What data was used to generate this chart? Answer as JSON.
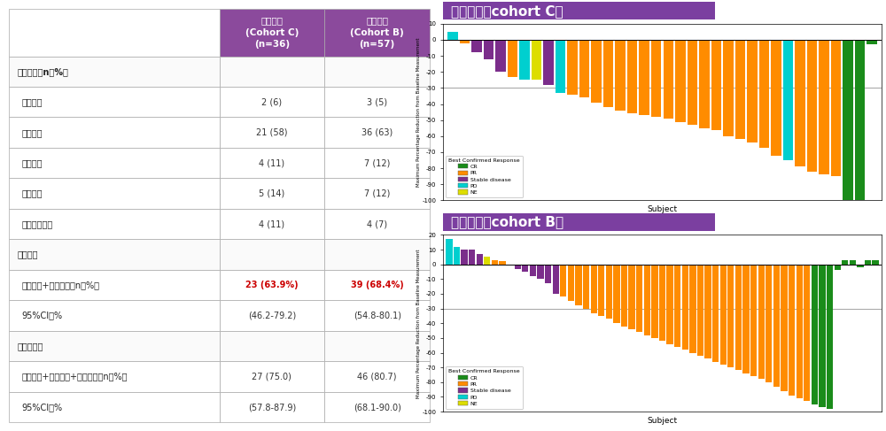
{
  "table": {
    "header_bg": "#8B4A9C",
    "header_text_color": "#FFFFFF",
    "col1_header": "一线治疗\n(Cohort C)\n(n=36)",
    "col2_header": "后线治疗\n(Cohort B)\n(n=57)",
    "rows": [
      {
        "label": "最佳反应，n（%）",
        "c1": "",
        "c2": "",
        "bold": true,
        "section": true
      },
      {
        "label": "完全缓解",
        "c1": "2 (6)",
        "c2": "3 (5)",
        "bold": false
      },
      {
        "label": "部分缓解",
        "c1": "21 (58)",
        "c2": "36 (63)",
        "bold": false
      },
      {
        "label": "疾病稳定",
        "c1": "4 (11)",
        "c2": "7 (12)",
        "bold": false
      },
      {
        "label": "疾病进展",
        "c1": "5 (14)",
        "c2": "7 (12)",
        "bold": false
      },
      {
        "label": "无法判断疗效",
        "c1": "4 (11)",
        "c2": "4 (7)",
        "bold": false
      },
      {
        "label": "治疗反应",
        "c1": "",
        "c2": "",
        "bold": true,
        "section": true
      },
      {
        "label": "完全缓解+部分缓解，n（%）",
        "c1": "23 (63.9%)",
        "c2": "39 (68.4%)",
        "bold": false,
        "red": true
      },
      {
        "label": "95%CI，%",
        "c1": "(46.2-79.2)",
        "c2": "(54.8-80.1)",
        "bold": false
      },
      {
        "label": "疾病控制率",
        "c1": "",
        "c2": "",
        "bold": true,
        "section": true
      },
      {
        "label": "完全缓解+部分缓解+疾病稳定，n（%）",
        "c1": "27 (75.0)",
        "c2": "46 (80.7)",
        "bold": false
      },
      {
        "label": "95%CI，%",
        "c1": "(57.8-87.9)",
        "c2": "(68.1-90.0)",
        "bold": false
      }
    ]
  },
  "cohort_c": {
    "title": "一线治疗（cohort C）",
    "title_bg": "#7B3FA0",
    "title_text_color": "#FFFFFF",
    "ylabel": "Maximum Percentage Reduction from Baseline Measurement",
    "xlabel": "Subject",
    "ylim": [
      -100,
      10
    ],
    "yticks": [
      10,
      0,
      -10,
      -20,
      -30,
      -40,
      -50,
      -60,
      -70,
      -80,
      -90,
      -100
    ],
    "hline_y": -30,
    "bars": [
      {
        "v": 5,
        "color": "#00CFCF"
      },
      {
        "v": -2,
        "color": "#FF8C00"
      },
      {
        "v": -8,
        "color": "#7B2D8B"
      },
      {
        "v": -12,
        "color": "#7B2D8B"
      },
      {
        "v": -20,
        "color": "#7B2D8B"
      },
      {
        "v": -23,
        "color": "#FF8C00"
      },
      {
        "v": -25,
        "color": "#00CFCF"
      },
      {
        "v": -25,
        "color": "#DDDD00"
      },
      {
        "v": -28,
        "color": "#7B2D8B"
      },
      {
        "v": -33,
        "color": "#00CFCF"
      },
      {
        "v": -34,
        "color": "#FF8C00"
      },
      {
        "v": -36,
        "color": "#FF8C00"
      },
      {
        "v": -39,
        "color": "#FF8C00"
      },
      {
        "v": -42,
        "color": "#FF8C00"
      },
      {
        "v": -44,
        "color": "#FF8C00"
      },
      {
        "v": -46,
        "color": "#FF8C00"
      },
      {
        "v": -47,
        "color": "#FF8C00"
      },
      {
        "v": -48,
        "color": "#FF8C00"
      },
      {
        "v": -49,
        "color": "#FF8C00"
      },
      {
        "v": -51,
        "color": "#FF8C00"
      },
      {
        "v": -53,
        "color": "#FF8C00"
      },
      {
        "v": -55,
        "color": "#FF8C00"
      },
      {
        "v": -56,
        "color": "#FF8C00"
      },
      {
        "v": -60,
        "color": "#FF8C00"
      },
      {
        "v": -62,
        "color": "#FF8C00"
      },
      {
        "v": -64,
        "color": "#FF8C00"
      },
      {
        "v": -67,
        "color": "#FF8C00"
      },
      {
        "v": -72,
        "color": "#FF8C00"
      },
      {
        "v": -75,
        "color": "#00CFCF"
      },
      {
        "v": -79,
        "color": "#FF8C00"
      },
      {
        "v": -82,
        "color": "#FF8C00"
      },
      {
        "v": -84,
        "color": "#FF8C00"
      },
      {
        "v": -85,
        "color": "#FF8C00"
      },
      {
        "v": -100,
        "color": "#1A8C1A"
      },
      {
        "v": -100,
        "color": "#1A8C1A"
      },
      {
        "v": -3,
        "color": "#1A8C1A"
      }
    ]
  },
  "cohort_b": {
    "title": "后线治疗（cohort B）",
    "title_bg": "#7B3FA0",
    "title_text_color": "#FFFFFF",
    "ylabel": "Maximum Percentage Reduction from Baseline Measurement",
    "xlabel": "Subject",
    "ylim": [
      -100,
      20
    ],
    "yticks": [
      20,
      10,
      0,
      -10,
      -20,
      -30,
      -40,
      -50,
      -60,
      -70,
      -80,
      -90,
      -100
    ],
    "hline_y": -30,
    "bars": [
      {
        "v": 17,
        "color": "#00CFCF"
      },
      {
        "v": 12,
        "color": "#00CFCF"
      },
      {
        "v": 10,
        "color": "#7B2D8B"
      },
      {
        "v": 10,
        "color": "#7B2D8B"
      },
      {
        "v": 7,
        "color": "#7B2D8B"
      },
      {
        "v": 5,
        "color": "#DDDD00"
      },
      {
        "v": 3,
        "color": "#FF8C00"
      },
      {
        "v": 2,
        "color": "#FF8C00"
      },
      {
        "v": 0,
        "color": "#7B2D8B"
      },
      {
        "v": -3,
        "color": "#7B2D8B"
      },
      {
        "v": -5,
        "color": "#7B2D8B"
      },
      {
        "v": -8,
        "color": "#7B2D8B"
      },
      {
        "v": -10,
        "color": "#7B2D8B"
      },
      {
        "v": -13,
        "color": "#7B2D8B"
      },
      {
        "v": -20,
        "color": "#7B2D8B"
      },
      {
        "v": -22,
        "color": "#FF8C00"
      },
      {
        "v": -25,
        "color": "#FF8C00"
      },
      {
        "v": -28,
        "color": "#FF8C00"
      },
      {
        "v": -30,
        "color": "#FF8C00"
      },
      {
        "v": -33,
        "color": "#FF8C00"
      },
      {
        "v": -35,
        "color": "#FF8C00"
      },
      {
        "v": -37,
        "color": "#FF8C00"
      },
      {
        "v": -40,
        "color": "#FF8C00"
      },
      {
        "v": -42,
        "color": "#FF8C00"
      },
      {
        "v": -44,
        "color": "#FF8C00"
      },
      {
        "v": -46,
        "color": "#FF8C00"
      },
      {
        "v": -48,
        "color": "#FF8C00"
      },
      {
        "v": -50,
        "color": "#FF8C00"
      },
      {
        "v": -52,
        "color": "#FF8C00"
      },
      {
        "v": -54,
        "color": "#FF8C00"
      },
      {
        "v": -56,
        "color": "#FF8C00"
      },
      {
        "v": -58,
        "color": "#FF8C00"
      },
      {
        "v": -60,
        "color": "#FF8C00"
      },
      {
        "v": -62,
        "color": "#FF8C00"
      },
      {
        "v": -64,
        "color": "#FF8C00"
      },
      {
        "v": -66,
        "color": "#FF8C00"
      },
      {
        "v": -68,
        "color": "#FF8C00"
      },
      {
        "v": -70,
        "color": "#FF8C00"
      },
      {
        "v": -72,
        "color": "#FF8C00"
      },
      {
        "v": -74,
        "color": "#FF8C00"
      },
      {
        "v": -76,
        "color": "#FF8C00"
      },
      {
        "v": -78,
        "color": "#FF8C00"
      },
      {
        "v": -80,
        "color": "#FF8C00"
      },
      {
        "v": -83,
        "color": "#FF8C00"
      },
      {
        "v": -86,
        "color": "#FF8C00"
      },
      {
        "v": -89,
        "color": "#FF8C00"
      },
      {
        "v": -91,
        "color": "#FF8C00"
      },
      {
        "v": -93,
        "color": "#FF8C00"
      },
      {
        "v": -95,
        "color": "#1A8C1A"
      },
      {
        "v": -97,
        "color": "#1A8C1A"
      },
      {
        "v": -98,
        "color": "#1A8C1A"
      },
      {
        "v": -4,
        "color": "#1A8C1A"
      },
      {
        "v": 3,
        "color": "#1A8C1A"
      },
      {
        "v": 3,
        "color": "#1A8C1A"
      },
      {
        "v": -2,
        "color": "#1A8C1A"
      },
      {
        "v": 3,
        "color": "#1A8C1A"
      },
      {
        "v": 3,
        "color": "#1A8C1A"
      }
    ]
  },
  "legend_items": [
    {
      "label": "CR",
      "color": "#1A8C1A"
    },
    {
      "label": "PR",
      "color": "#FF8C00"
    },
    {
      "label": "Stable disease",
      "color": "#7B2D8B"
    },
    {
      "label": "PD",
      "color": "#00CFCF"
    },
    {
      "label": "NE",
      "color": "#DDDD00"
    }
  ]
}
